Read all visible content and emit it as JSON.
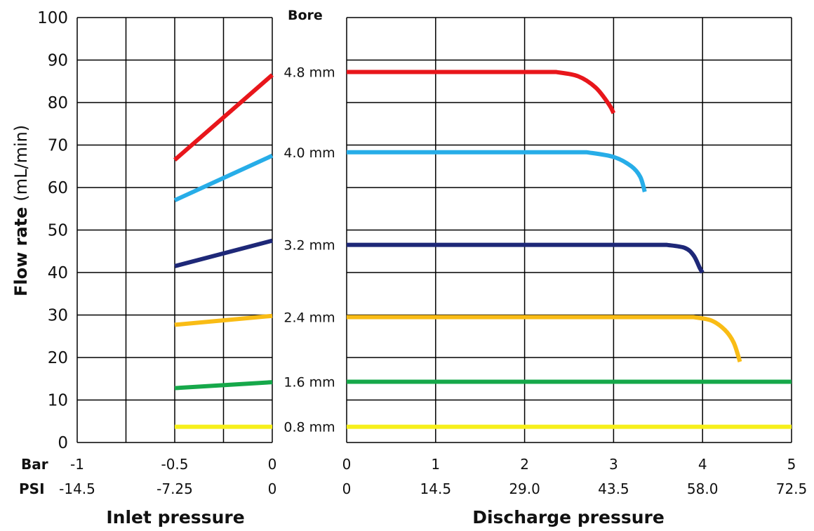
{
  "chart_data": {
    "type": "line",
    "y_axis": {
      "title_bold": "Flow rate",
      "title_unit": "(mL/min)",
      "range": [
        0,
        100
      ],
      "ticks": [
        "0",
        "10",
        "20",
        "30",
        "40",
        "50",
        "60",
        "70",
        "80",
        "90",
        "100"
      ]
    },
    "bore_header": "Bore",
    "inlet_panel": {
      "xlabel": "Inlet pressure",
      "bar_label": "Bar",
      "psi_label": "PSI",
      "bar_range": [
        -1,
        0
      ],
      "bar_ticks": [
        {
          "v": -1,
          "bar": "-1",
          "psi": "-14.5"
        },
        {
          "v": -0.5,
          "bar": "-0.5",
          "psi": "-7.25"
        },
        {
          "v": 0,
          "bar": "0",
          "psi": "0"
        }
      ],
      "grid_x": [
        -1,
        -0.75,
        -0.5,
        -0.25,
        0
      ]
    },
    "discharge_panel": {
      "xlabel": "Discharge pressure",
      "bar_range": [
        0,
        5
      ],
      "bar_ticks": [
        {
          "v": 0,
          "bar": "0",
          "psi": "0"
        },
        {
          "v": 1,
          "bar": "1",
          "psi": "14.5"
        },
        {
          "v": 2,
          "bar": "2",
          "psi": "29.0"
        },
        {
          "v": 3,
          "bar": "3",
          "psi": "43.5"
        },
        {
          "v": 4,
          "bar": "4",
          "psi": "58.0"
        },
        {
          "v": 5,
          "bar": "5",
          "psi": "72.5"
        }
      ],
      "grid_x": [
        0,
        1,
        2,
        3,
        4,
        5
      ]
    },
    "series": [
      {
        "name": "4.8 mm",
        "color": "#e8161b",
        "inlet": [
          [
            -0.5,
            66.5
          ],
          [
            0,
            86.5
          ]
        ],
        "discharge": [
          [
            0,
            87.2
          ],
          [
            2.35,
            87.2
          ],
          [
            2.6,
            86.2
          ],
          [
            2.8,
            83.5
          ],
          [
            2.95,
            79.5
          ],
          [
            3.0,
            77.5
          ]
        ]
      },
      {
        "name": "4.0 mm",
        "color": "#27ade8",
        "inlet": [
          [
            -0.5,
            57.0
          ],
          [
            0,
            67.5
          ]
        ],
        "discharge": [
          [
            0,
            68.3
          ],
          [
            2.7,
            68.3
          ],
          [
            3.0,
            67.2
          ],
          [
            3.2,
            65.0
          ],
          [
            3.3,
            62.5
          ],
          [
            3.35,
            59.0
          ]
        ]
      },
      {
        "name": "3.2 mm",
        "color": "#1e2878",
        "inlet": [
          [
            -0.5,
            41.5
          ],
          [
            0,
            47.5
          ]
        ],
        "discharge": [
          [
            0,
            46.5
          ],
          [
            3.6,
            46.5
          ],
          [
            3.8,
            45.8
          ],
          [
            3.9,
            44.0
          ],
          [
            3.97,
            41.0
          ],
          [
            4.0,
            40.0
          ]
        ]
      },
      {
        "name": "2.4 mm",
        "color": "#f9bc15",
        "inlet": [
          [
            -0.5,
            27.7
          ],
          [
            0,
            29.8
          ]
        ],
        "discharge": [
          [
            0,
            29.5
          ],
          [
            3.9,
            29.5
          ],
          [
            4.1,
            28.7
          ],
          [
            4.25,
            26.5
          ],
          [
            4.35,
            23.5
          ],
          [
            4.42,
            19.0
          ]
        ]
      },
      {
        "name": "1.6 mm",
        "color": "#16a84a",
        "inlet": [
          [
            -0.5,
            12.8
          ],
          [
            0,
            14.2
          ]
        ],
        "discharge": [
          [
            0,
            14.3
          ],
          [
            5,
            14.3
          ]
        ]
      },
      {
        "name": "0.8 mm",
        "color": "#f6ef1a",
        "inlet": [
          [
            -0.5,
            3.7
          ],
          [
            0,
            3.7
          ]
        ],
        "discharge": [
          [
            0,
            3.7
          ],
          [
            5,
            3.7
          ]
        ]
      }
    ]
  }
}
